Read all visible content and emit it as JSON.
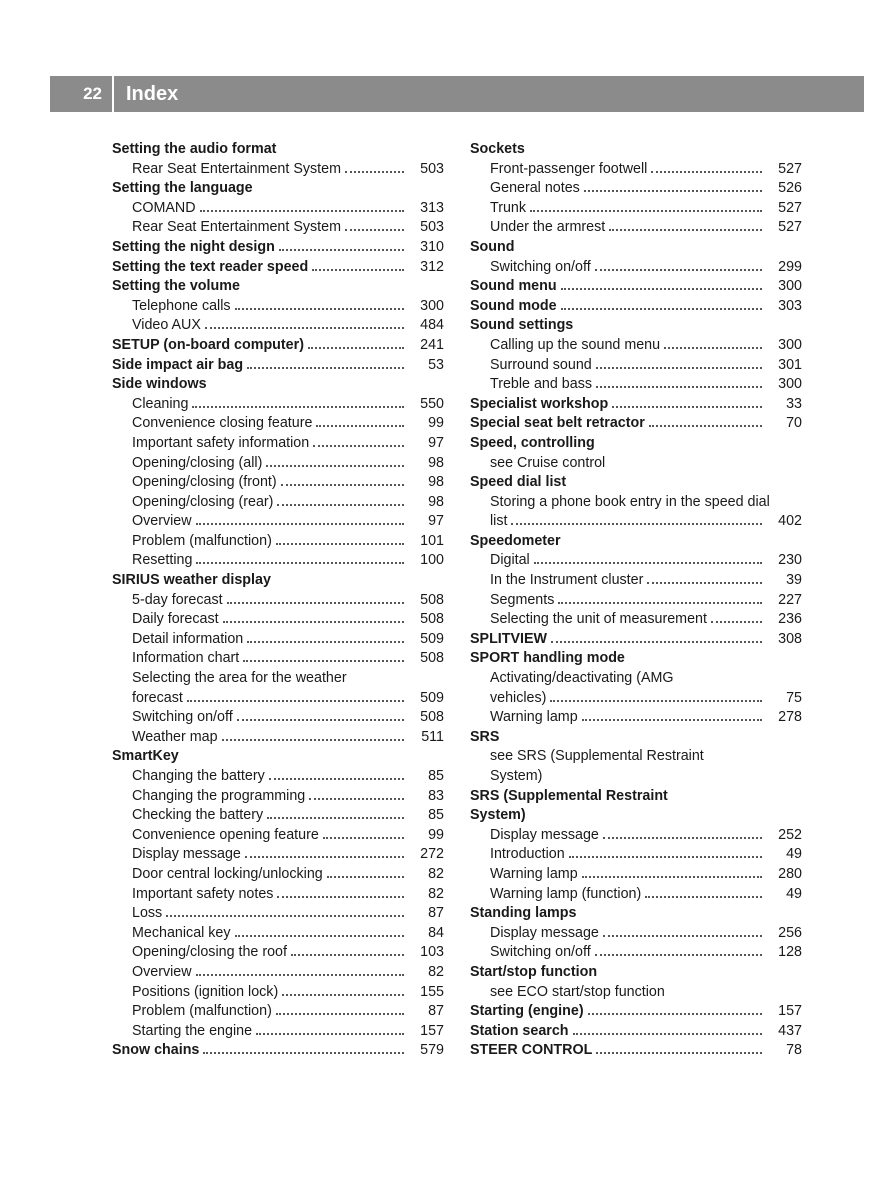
{
  "header": {
    "page_number": "22",
    "title": "Index"
  },
  "columns": [
    [
      {
        "t": "h",
        "label": "Setting the audio format"
      },
      {
        "t": "s",
        "label": "Rear Seat Entertainment System",
        "page": "503"
      },
      {
        "t": "h",
        "label": "Setting the language"
      },
      {
        "t": "s",
        "label": "COMAND",
        "page": "313"
      },
      {
        "t": "s",
        "label": "Rear Seat Entertainment System",
        "page": "503"
      },
      {
        "t": "hp",
        "label": "Setting the night design",
        "page": "310"
      },
      {
        "t": "hp",
        "label": "Setting the text reader speed",
        "page": "312"
      },
      {
        "t": "h",
        "label": "Setting the volume"
      },
      {
        "t": "s",
        "label": "Telephone calls",
        "page": "300"
      },
      {
        "t": "s",
        "label": "Video AUX",
        "page": "484"
      },
      {
        "t": "hp",
        "label": "SETUP (on-board computer)",
        "page": "241"
      },
      {
        "t": "hp",
        "label": "Side impact air bag",
        "page": "53"
      },
      {
        "t": "h",
        "label": "Side windows"
      },
      {
        "t": "s",
        "label": "Cleaning",
        "page": "550"
      },
      {
        "t": "s",
        "label": "Convenience closing feature",
        "page": "99"
      },
      {
        "t": "s",
        "label": "Important safety information",
        "page": "97"
      },
      {
        "t": "s",
        "label": "Opening/closing (all)",
        "page": "98"
      },
      {
        "t": "s",
        "label": "Opening/closing (front)",
        "page": "98"
      },
      {
        "t": "s",
        "label": "Opening/closing (rear)",
        "page": "98"
      },
      {
        "t": "s",
        "label": "Overview",
        "page": "97"
      },
      {
        "t": "s",
        "label": "Problem (malfunction)",
        "page": "101"
      },
      {
        "t": "s",
        "label": "Resetting",
        "page": "100"
      },
      {
        "t": "h",
        "label": "SIRIUS weather display"
      },
      {
        "t": "s",
        "label": "5-day forecast",
        "page": "508"
      },
      {
        "t": "s",
        "label": "Daily forecast",
        "page": "508"
      },
      {
        "t": "s",
        "label": "Detail information",
        "page": "509"
      },
      {
        "t": "s",
        "label": "Information chart",
        "page": "508"
      },
      {
        "t": "sw",
        "label": "Selecting the area for the weather forecast",
        "page": "509"
      },
      {
        "t": "s",
        "label": "Switching on/off",
        "page": "508"
      },
      {
        "t": "s",
        "label": "Weather map",
        "page": "511"
      },
      {
        "t": "h",
        "label": "SmartKey"
      },
      {
        "t": "s",
        "label": "Changing the battery",
        "page": "85"
      },
      {
        "t": "s",
        "label": "Changing the programming",
        "page": "83"
      },
      {
        "t": "s",
        "label": "Checking the battery",
        "page": "85"
      },
      {
        "t": "s",
        "label": "Convenience opening feature",
        "page": "99"
      },
      {
        "t": "s",
        "label": "Display message",
        "page": "272"
      },
      {
        "t": "s",
        "label": "Door central locking/unlocking",
        "page": "82"
      },
      {
        "t": "s",
        "label": "Important safety notes",
        "page": "82"
      },
      {
        "t": "s",
        "label": "Loss",
        "page": "87"
      },
      {
        "t": "s",
        "label": "Mechanical key",
        "page": "84"
      },
      {
        "t": "s",
        "label": "Opening/closing the roof",
        "page": "103"
      },
      {
        "t": "s",
        "label": "Overview",
        "page": "82"
      },
      {
        "t": "s",
        "label": "Positions (ignition lock)",
        "page": "155"
      },
      {
        "t": "s",
        "label": "Problem (malfunction)",
        "page": "87"
      },
      {
        "t": "s",
        "label": "Starting the engine",
        "page": "157"
      },
      {
        "t": "hp",
        "label": "Snow chains",
        "page": "579"
      }
    ],
    [
      {
        "t": "h",
        "label": "Sockets"
      },
      {
        "t": "s",
        "label": "Front-passenger footwell",
        "page": "527"
      },
      {
        "t": "s",
        "label": "General notes",
        "page": "526"
      },
      {
        "t": "s",
        "label": "Trunk",
        "page": "527"
      },
      {
        "t": "s",
        "label": "Under the armrest",
        "page": "527"
      },
      {
        "t": "h",
        "label": "Sound"
      },
      {
        "t": "s",
        "label": "Switching on/off",
        "page": "299"
      },
      {
        "t": "hp",
        "label": "Sound menu",
        "page": "300"
      },
      {
        "t": "hp",
        "label": "Sound mode",
        "page": "303"
      },
      {
        "t": "h",
        "label": "Sound settings"
      },
      {
        "t": "s",
        "label": "Calling up the sound menu",
        "page": "300"
      },
      {
        "t": "s",
        "label": "Surround sound",
        "page": "301"
      },
      {
        "t": "s",
        "label": "Treble and bass",
        "page": "300"
      },
      {
        "t": "hp",
        "label": "Specialist workshop",
        "page": "33"
      },
      {
        "t": "hp",
        "label": "Special seat belt retractor",
        "page": "70"
      },
      {
        "t": "h",
        "label": "Speed, controlling"
      },
      {
        "t": "sn",
        "label": "see Cruise control"
      },
      {
        "t": "h",
        "label": "Speed dial list"
      },
      {
        "t": "sw",
        "label": "Storing a phone book entry in the speed dial list",
        "page": "402"
      },
      {
        "t": "h",
        "label": "Speedometer"
      },
      {
        "t": "s",
        "label": "Digital",
        "page": "230"
      },
      {
        "t": "s",
        "label": "In the Instrument cluster",
        "page": "39"
      },
      {
        "t": "s",
        "label": "Segments",
        "page": "227"
      },
      {
        "t": "s",
        "label": "Selecting the unit of measurement",
        "page": "236"
      },
      {
        "t": "hp",
        "label": "SPLITVIEW",
        "page": "308"
      },
      {
        "t": "h",
        "label": "SPORT handling mode"
      },
      {
        "t": "sw",
        "label": "Activating/deactivating (AMG vehicles)",
        "page": "75"
      },
      {
        "t": "s",
        "label": "Warning lamp",
        "page": "278"
      },
      {
        "t": "h",
        "label": "SRS"
      },
      {
        "t": "snw",
        "label": "see SRS (Supplemental Restraint System)"
      },
      {
        "t": "hw",
        "label": "SRS (Supplemental Restraint System)"
      },
      {
        "t": "s",
        "label": "Display message",
        "page": "252"
      },
      {
        "t": "s",
        "label": "Introduction",
        "page": "49"
      },
      {
        "t": "s",
        "label": "Warning lamp",
        "page": "280"
      },
      {
        "t": "s",
        "label": "Warning lamp (function)",
        "page": "49"
      },
      {
        "t": "h",
        "label": "Standing lamps"
      },
      {
        "t": "s",
        "label": "Display message",
        "page": "256"
      },
      {
        "t": "s",
        "label": "Switching on/off",
        "page": "128"
      },
      {
        "t": "h",
        "label": "Start/stop function"
      },
      {
        "t": "sn",
        "label": "see ECO start/stop function"
      },
      {
        "t": "hp",
        "label": "Starting (engine)",
        "page": "157"
      },
      {
        "t": "hp",
        "label": "Station search",
        "page": "437"
      },
      {
        "t": "hp",
        "label": "STEER CONTROL",
        "page": "78"
      }
    ]
  ]
}
